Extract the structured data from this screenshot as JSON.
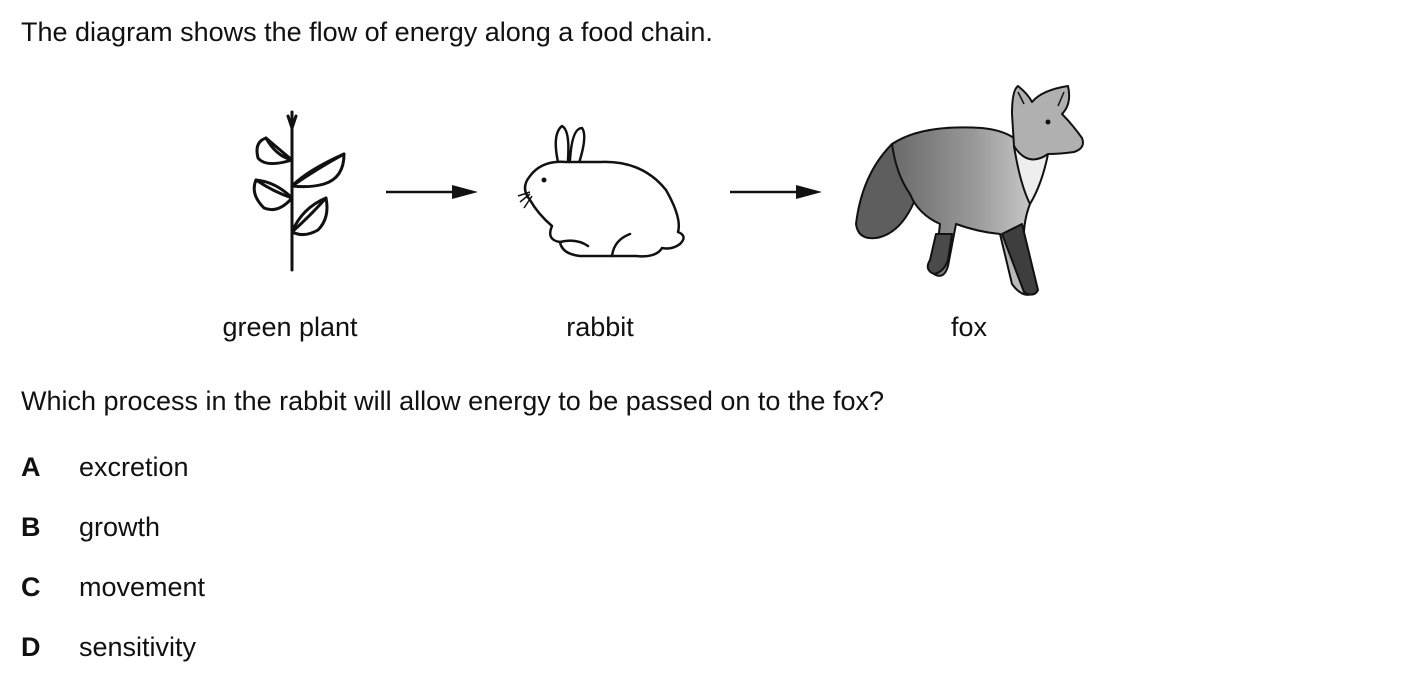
{
  "intro": "The diagram shows the flow of energy along a food chain.",
  "food_chain": {
    "organisms": [
      {
        "label": "green plant",
        "icon": "plant-icon"
      },
      {
        "label": "rabbit",
        "icon": "rabbit-icon"
      },
      {
        "label": "fox",
        "icon": "fox-icon"
      }
    ],
    "arrows": [
      "arrow-right-icon",
      "arrow-right-icon"
    ]
  },
  "question": "Which process in the rabbit will allow energy to be passed on to the fox?",
  "options": [
    {
      "letter": "A",
      "text": "excretion"
    },
    {
      "letter": "B",
      "text": "growth"
    },
    {
      "letter": "C",
      "text": "movement"
    },
    {
      "letter": "D",
      "text": "sensitivity"
    }
  ]
}
